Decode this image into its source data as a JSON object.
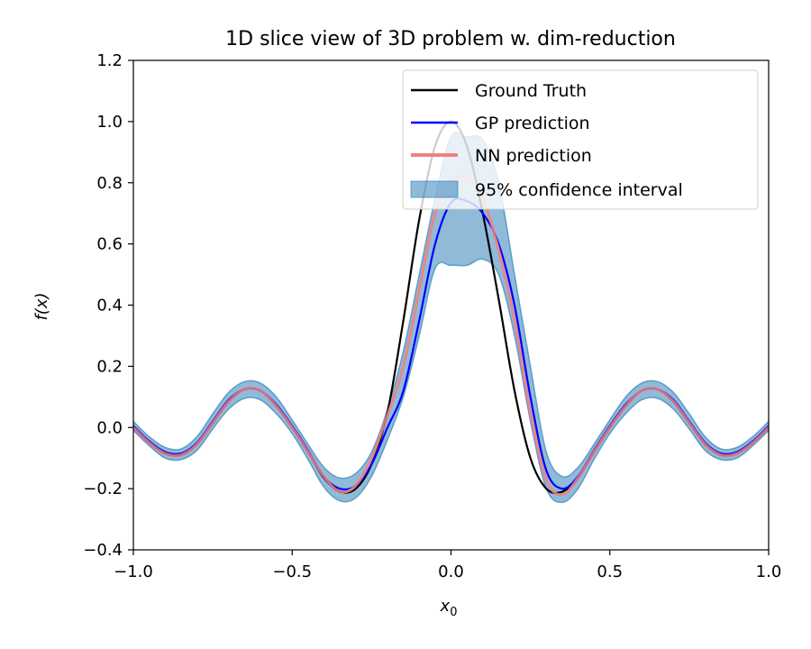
{
  "chart_data": {
    "type": "line",
    "title": "1D slice view of 3D problem w. dim-reduction",
    "xlabel": "x",
    "xlabel_sub": "0",
    "ylabel": "f(x)",
    "xlim": [
      -1.0,
      1.0
    ],
    "ylim": [
      -0.4,
      1.2
    ],
    "xticks": [
      -1.0,
      -0.5,
      0.0,
      0.5,
      1.0
    ],
    "xtick_labels": [
      "−1.0",
      "−0.5",
      "0.0",
      "0.5",
      "1.0"
    ],
    "yticks": [
      -0.4,
      -0.2,
      0.0,
      0.2,
      0.4,
      0.6,
      0.8,
      1.0,
      1.2
    ],
    "ytick_labels": [
      "−0.4",
      "−0.2",
      "0.0",
      "0.2",
      "0.4",
      "0.6",
      "0.8",
      "1.0",
      "1.2"
    ],
    "legend_position": "top-right",
    "legend": [
      "Ground Truth",
      "GP prediction",
      "NN prediction",
      "95% confidence interval"
    ],
    "x": [
      -1.0,
      -0.95,
      -0.9,
      -0.85,
      -0.8,
      -0.75,
      -0.7,
      -0.65,
      -0.6,
      -0.55,
      -0.5,
      -0.45,
      -0.4,
      -0.35,
      -0.3,
      -0.25,
      -0.2,
      -0.15,
      -0.1,
      -0.05,
      0.0,
      0.05,
      0.1,
      0.15,
      0.2,
      0.25,
      0.3,
      0.35,
      0.4,
      0.45,
      0.5,
      0.55,
      0.6,
      0.65,
      0.7,
      0.75,
      0.8,
      0.85,
      0.9,
      0.95,
      1.0
    ],
    "series": [
      {
        "name": "Ground Truth",
        "color": "#000000",
        "values": [
          0.0,
          -0.05,
          -0.085,
          -0.09,
          -0.055,
          0.015,
          0.085,
          0.125,
          0.12,
          0.07,
          0.0,
          -0.08,
          -0.165,
          -0.21,
          -0.2,
          -0.12,
          0.05,
          0.35,
          0.68,
          0.92,
          1.0,
          0.92,
          0.7,
          0.42,
          0.12,
          -0.1,
          -0.2,
          -0.21,
          -0.165,
          -0.08,
          0.0,
          0.07,
          0.12,
          0.125,
          0.085,
          0.015,
          -0.055,
          -0.09,
          -0.085,
          -0.05,
          0.0
        ]
      },
      {
        "name": "GP prediction",
        "color": "#0000ff",
        "values": [
          0.005,
          -0.045,
          -0.08,
          -0.085,
          -0.05,
          0.02,
          0.09,
          0.125,
          0.12,
          0.075,
          0.005,
          -0.075,
          -0.16,
          -0.2,
          -0.19,
          -0.12,
          0.0,
          0.12,
          0.35,
          0.6,
          0.735,
          0.74,
          0.7,
          0.6,
          0.4,
          0.1,
          -0.14,
          -0.2,
          -0.16,
          -0.075,
          0.005,
          0.075,
          0.12,
          0.125,
          0.09,
          0.02,
          -0.05,
          -0.085,
          -0.08,
          -0.045,
          0.005
        ]
      },
      {
        "name": "NN prediction",
        "color": "#f08080",
        "values": [
          0.0,
          -0.05,
          -0.085,
          -0.09,
          -0.055,
          0.015,
          0.085,
          0.125,
          0.12,
          0.07,
          0.0,
          -0.08,
          -0.16,
          -0.21,
          -0.19,
          -0.1,
          0.04,
          0.2,
          0.45,
          0.7,
          0.8,
          0.82,
          0.75,
          0.58,
          0.35,
          0.05,
          -0.17,
          -0.22,
          -0.165,
          -0.08,
          0.0,
          0.07,
          0.12,
          0.125,
          0.085,
          0.015,
          -0.055,
          -0.09,
          -0.085,
          -0.05,
          0.0
        ]
      }
    ],
    "confidence_band": {
      "name": "95% confidence interval",
      "color": "#1f77b4",
      "lower": [
        -0.01,
        -0.06,
        -0.1,
        -0.105,
        -0.075,
        -0.005,
        0.06,
        0.095,
        0.09,
        0.045,
        -0.02,
        -0.105,
        -0.195,
        -0.24,
        -0.23,
        -0.16,
        -0.04,
        0.1,
        0.3,
        0.52,
        0.53,
        0.53,
        0.55,
        0.5,
        0.3,
        0.02,
        -0.2,
        -0.245,
        -0.2,
        -0.105,
        -0.02,
        0.045,
        0.09,
        0.095,
        0.06,
        -0.005,
        -0.075,
        -0.105,
        -0.1,
        -0.06,
        -0.01
      ],
      "upper": [
        0.02,
        -0.03,
        -0.065,
        -0.07,
        -0.03,
        0.045,
        0.115,
        0.15,
        0.145,
        0.1,
        0.025,
        -0.055,
        -0.13,
        -0.165,
        -0.15,
        -0.08,
        0.06,
        0.25,
        0.5,
        0.75,
        0.95,
        0.95,
        0.94,
        0.8,
        0.5,
        0.2,
        -0.08,
        -0.16,
        -0.13,
        -0.055,
        0.025,
        0.1,
        0.145,
        0.15,
        0.115,
        0.045,
        -0.03,
        -0.07,
        -0.065,
        -0.03,
        0.02
      ]
    }
  }
}
